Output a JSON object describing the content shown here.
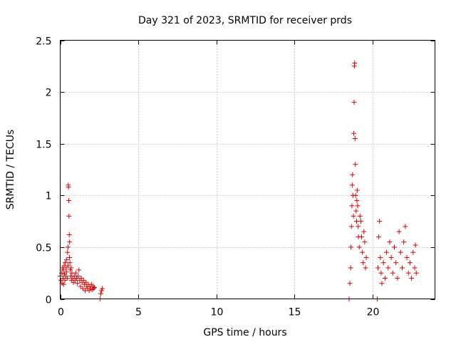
{
  "chart_data": {
    "type": "scatter",
    "title": "Day 321 of 2023, SRMTID for receiver prds",
    "xlabel": "GPS time / hours",
    "ylabel": "SRMTID / TECUs",
    "xlim": [
      0,
      24
    ],
    "ylim": [
      0,
      2.5
    ],
    "xticks": [
      0,
      5,
      10,
      15,
      20
    ],
    "xtick_labels": [
      "0",
      "5",
      "10",
      "15",
      "20"
    ],
    "yticks": [
      0,
      0.5,
      1,
      1.5,
      2,
      2.5
    ],
    "ytick_labels": [
      "0",
      "0.5",
      "1",
      "1.5",
      "2",
      "2.5"
    ],
    "grid": true,
    "marker": "+",
    "color": "#e00000",
    "series": [
      {
        "name": "SRMTID",
        "points": [
          [
            0.0,
            0.22
          ],
          [
            0.05,
            0.18
          ],
          [
            0.1,
            0.25
          ],
          [
            0.12,
            0.15
          ],
          [
            0.15,
            0.3
          ],
          [
            0.18,
            0.2
          ],
          [
            0.2,
            0.28
          ],
          [
            0.22,
            0.14
          ],
          [
            0.25,
            0.32
          ],
          [
            0.28,
            0.24
          ],
          [
            0.3,
            0.18
          ],
          [
            0.32,
            0.35
          ],
          [
            0.35,
            0.22
          ],
          [
            0.38,
            0.3
          ],
          [
            0.4,
            0.26
          ],
          [
            0.42,
            0.38
          ],
          [
            0.45,
            0.2
          ],
          [
            0.47,
            0.45
          ],
          [
            0.5,
            0.32
          ],
          [
            0.5,
            0.5
          ],
          [
            0.52,
            1.1
          ],
          [
            0.53,
            1.08
          ],
          [
            0.55,
            0.95
          ],
          [
            0.56,
            0.8
          ],
          [
            0.58,
            0.62
          ],
          [
            0.6,
            0.55
          ],
          [
            0.6,
            0.4
          ],
          [
            0.62,
            0.35
          ],
          [
            0.65,
            0.28
          ],
          [
            0.68,
            0.22
          ],
          [
            0.7,
            0.3
          ],
          [
            0.72,
            0.18
          ],
          [
            0.75,
            0.25
          ],
          [
            0.8,
            0.2
          ],
          [
            0.85,
            0.16
          ],
          [
            0.9,
            0.22
          ],
          [
            0.95,
            0.18
          ],
          [
            1.0,
            0.25
          ],
          [
            1.05,
            0.2
          ],
          [
            1.1,
            0.15
          ],
          [
            1.15,
            0.22
          ],
          [
            1.2,
            0.28
          ],
          [
            1.25,
            0.18
          ],
          [
            1.3,
            0.12
          ],
          [
            1.35,
            0.2
          ],
          [
            1.4,
            0.16
          ],
          [
            1.45,
            0.1
          ],
          [
            1.5,
            0.18
          ],
          [
            1.55,
            0.14
          ],
          [
            1.6,
            0.08
          ],
          [
            1.65,
            0.16
          ],
          [
            1.7,
            0.12
          ],
          [
            1.75,
            0.1
          ],
          [
            1.8,
            0.14
          ],
          [
            1.85,
            0.08
          ],
          [
            1.9,
            0.12
          ],
          [
            1.95,
            0.1
          ],
          [
            2.0,
            0.14
          ],
          [
            2.05,
            0.09
          ],
          [
            2.1,
            0.12
          ],
          [
            2.15,
            0.1
          ],
          [
            2.2,
            0.11
          ],
          [
            2.55,
            0.0
          ],
          [
            2.6,
            0.05
          ],
          [
            2.65,
            0.08
          ],
          [
            2.7,
            0.1
          ],
          [
            18.5,
            0.0
          ],
          [
            18.55,
            0.15
          ],
          [
            18.6,
            0.3
          ],
          [
            18.62,
            0.5
          ],
          [
            18.65,
            0.7
          ],
          [
            18.68,
            0.9
          ],
          [
            18.7,
            1.1
          ],
          [
            18.72,
            1.2
          ],
          [
            18.75,
            1.0
          ],
          [
            18.78,
            0.8
          ],
          [
            18.8,
            1.6
          ],
          [
            18.82,
            1.9
          ],
          [
            18.84,
            2.25
          ],
          [
            18.86,
            2.28
          ],
          [
            18.88,
            1.55
          ],
          [
            18.9,
            1.3
          ],
          [
            18.92,
            1.0
          ],
          [
            18.95,
            0.85
          ],
          [
            18.98,
            0.75
          ],
          [
            19.0,
            0.95
          ],
          [
            19.02,
            1.05
          ],
          [
            19.05,
            0.9
          ],
          [
            19.08,
            0.7
          ],
          [
            19.1,
            0.6
          ],
          [
            19.15,
            0.5
          ],
          [
            19.2,
            0.8
          ],
          [
            19.25,
            0.75
          ],
          [
            19.3,
            0.6
          ],
          [
            19.35,
            0.45
          ],
          [
            19.4,
            0.35
          ],
          [
            19.45,
            0.65
          ],
          [
            19.5,
            0.55
          ],
          [
            19.55,
            0.3
          ],
          [
            19.6,
            0.4
          ],
          [
            20.3,
            0.0
          ],
          [
            20.35,
            0.3
          ],
          [
            20.4,
            0.6
          ],
          [
            20.45,
            0.75
          ],
          [
            20.5,
            0.4
          ],
          [
            20.55,
            0.25
          ],
          [
            20.6,
            0.15
          ],
          [
            20.7,
            0.35
          ],
          [
            20.8,
            0.2
          ],
          [
            20.9,
            0.45
          ],
          [
            21.0,
            0.3
          ],
          [
            21.1,
            0.55
          ],
          [
            21.2,
            0.4
          ],
          [
            21.3,
            0.25
          ],
          [
            21.4,
            0.5
          ],
          [
            21.5,
            0.35
          ],
          [
            21.6,
            0.2
          ],
          [
            21.7,
            0.65
          ],
          [
            21.8,
            0.45
          ],
          [
            21.9,
            0.3
          ],
          [
            22.0,
            0.55
          ],
          [
            22.1,
            0.7
          ],
          [
            22.2,
            0.4
          ],
          [
            22.3,
            0.25
          ],
          [
            22.4,
            0.35
          ],
          [
            22.5,
            0.2
          ],
          [
            22.6,
            0.45
          ],
          [
            22.7,
            0.3
          ],
          [
            22.75,
            0.52
          ],
          [
            22.8,
            0.25
          ]
        ]
      }
    ]
  }
}
